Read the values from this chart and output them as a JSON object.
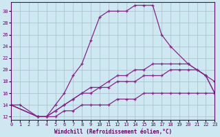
{
  "xlabel": "Windchill (Refroidissement éolien,°C)",
  "background_color": "#cde8f0",
  "grid_color": "#aabbcc",
  "line_color": "#882288",
  "xlim": [
    0,
    23
  ],
  "ylim": [
    11.5,
    31.5
  ],
  "xtick_labels": [
    "0",
    "1",
    "2",
    "3",
    "4",
    "5",
    "6",
    "7",
    "8",
    "9",
    "10",
    "11",
    "12",
    "13",
    "14",
    "15",
    "16",
    "17",
    "18",
    "19",
    "20",
    "21",
    "22",
    "23"
  ],
  "xticks": [
    0,
    1,
    2,
    3,
    4,
    5,
    6,
    7,
    8,
    9,
    10,
    11,
    12,
    13,
    14,
    15,
    16,
    17,
    18,
    19,
    20,
    21,
    22,
    23
  ],
  "yticks": [
    12,
    14,
    16,
    18,
    20,
    22,
    24,
    26,
    28,
    30
  ],
  "series": [
    {
      "x": [
        0,
        1,
        3,
        4,
        5,
        6,
        7,
        8,
        9,
        10,
        11,
        12,
        13,
        14,
        15,
        16,
        17,
        18,
        20,
        22,
        23
      ],
      "y": [
        14,
        14,
        12,
        12,
        14,
        16,
        19,
        21,
        25,
        29,
        30,
        30,
        30,
        31,
        31,
        31,
        26,
        24,
        21,
        19,
        16
      ]
    },
    {
      "x": [
        0,
        3,
        4,
        5,
        6,
        7,
        8,
        9,
        10,
        11,
        12,
        13,
        14,
        15,
        16,
        17,
        18,
        19,
        20,
        21,
        22,
        23
      ],
      "y": [
        14,
        12,
        12,
        13,
        14,
        15,
        16,
        17,
        17,
        18,
        19,
        19,
        20,
        20,
        21,
        21,
        21,
        21,
        21,
        20,
        19,
        18
      ]
    },
    {
      "x": [
        0,
        3,
        4,
        5,
        6,
        7,
        8,
        9,
        10,
        11,
        12,
        13,
        14,
        15,
        16,
        17,
        18,
        19,
        20,
        21,
        22,
        23
      ],
      "y": [
        14,
        12,
        12,
        12,
        13,
        13,
        14,
        14,
        14,
        14,
        15,
        15,
        15,
        16,
        16,
        16,
        16,
        16,
        16,
        16,
        16,
        16
      ]
    },
    {
      "x": [
        0,
        3,
        4,
        5,
        6,
        7,
        8,
        9,
        10,
        11,
        12,
        13,
        14,
        15,
        16,
        17,
        18,
        19,
        20,
        21,
        22,
        23
      ],
      "y": [
        14,
        12,
        12,
        13,
        14,
        15,
        16,
        16,
        17,
        17,
        18,
        18,
        18,
        19,
        19,
        19,
        20,
        20,
        20,
        20,
        19,
        16
      ]
    }
  ]
}
